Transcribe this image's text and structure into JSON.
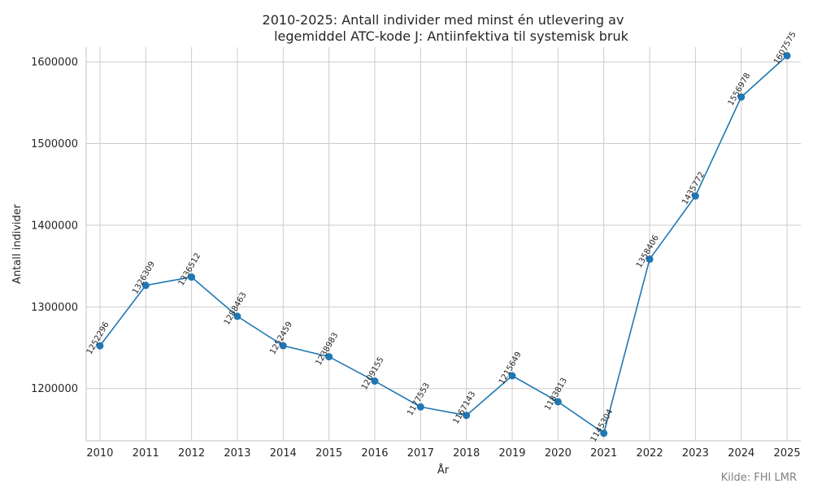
{
  "chart_data": {
    "type": "line",
    "title_line1": "2010-2025: Antall individer med minst én utlevering av",
    "title_line2": "legemiddel ATC-kode J: Antiinfektiva til systemisk bruk",
    "xlabel": "År",
    "ylabel": "Antall individer",
    "source": "Kilde: FHI LMR",
    "x": [
      2010,
      2011,
      2012,
      2013,
      2014,
      2015,
      2016,
      2017,
      2018,
      2019,
      2020,
      2021,
      2022,
      2023,
      2024,
      2025
    ],
    "values": [
      1252296,
      1326309,
      1336512,
      1288463,
      1252459,
      1238983,
      1209155,
      1177553,
      1167143,
      1215649,
      1183813,
      1145304,
      1358406,
      1435772,
      1556978,
      1607575
    ],
    "ylim": [
      1136000,
      1618000
    ],
    "xlim": [
      2009.7,
      2025.3
    ],
    "yticks": [
      1200000,
      1300000,
      1400000,
      1500000,
      1600000
    ],
    "grid": true,
    "color": "#1f77b4"
  }
}
